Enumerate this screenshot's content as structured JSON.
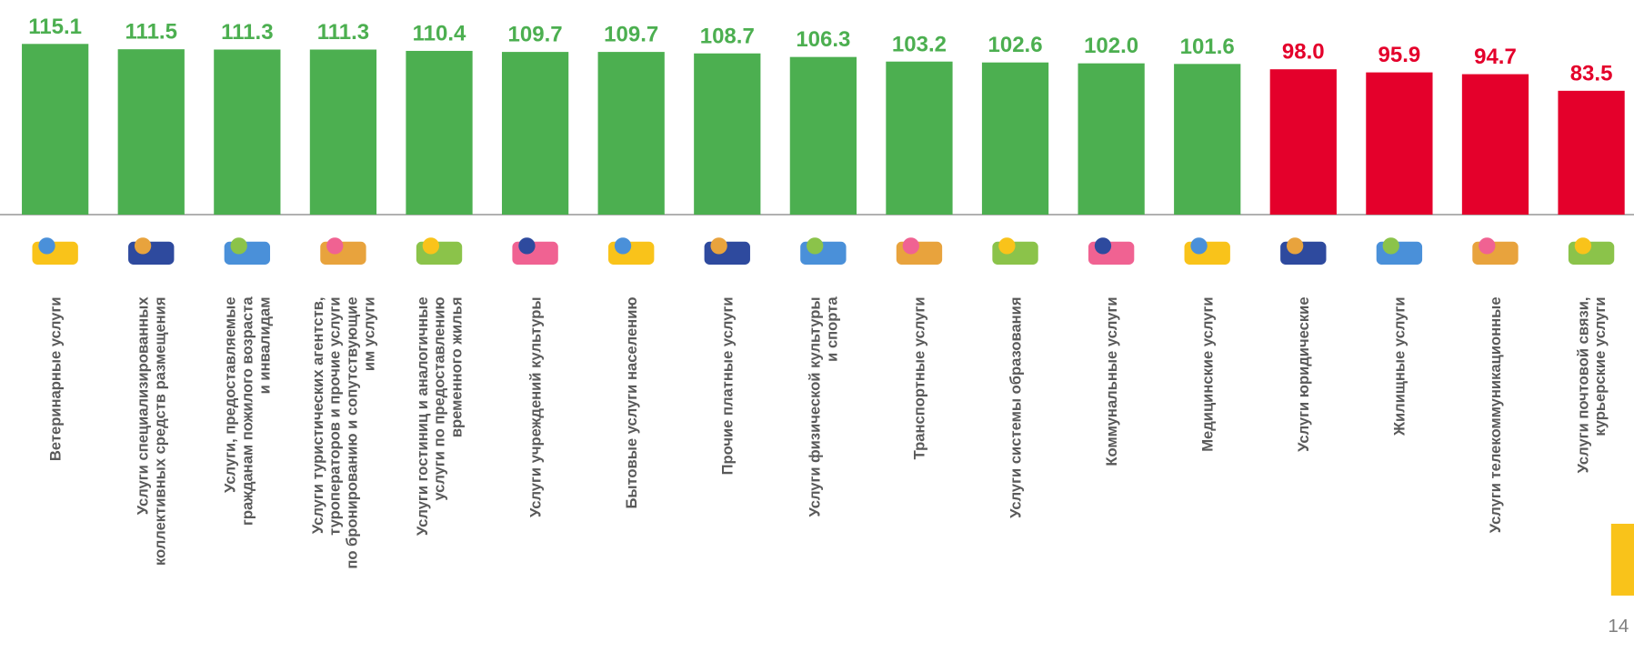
{
  "chart_data": {
    "type": "bar",
    "categories": [
      "Ветеринарные услуги",
      "Услуги специализированных\nколлективных средств размещения",
      "Услуги, предоставляемые\nгражданам пожилого возраста\nи инвалидам",
      "Услуги туристических агентств,\nтуроператоров и прочие услуги\nпо бронированию и  сопутствующие\nим услуги",
      "Услуги гостиниц и аналогичные\nуслуги по предоставлению\nвременного жилья",
      "Услуги учреждений культуры",
      "Бытовые услуги населению",
      "Прочие платные услуги",
      "Услуги физической культуры\nи спорта",
      "Транспортные услуги",
      "Услуги системы образования",
      "Коммунальные услуги",
      "Медицинские услуги",
      "Услуги юридические",
      "Жилищные услуги",
      "Услуги телекоммуникационные",
      "Услуги почтовой связи,\nкурьерские услуги"
    ],
    "values": [
      115.1,
      111.5,
      111.3,
      111.3,
      110.4,
      109.7,
      109.7,
      108.7,
      106.3,
      103.2,
      102.6,
      102.0,
      101.6,
      98.0,
      95.9,
      94.7,
      83.5
    ],
    "value_labels": [
      "115.1",
      "111.5",
      "111.3",
      "111.3",
      "110.4",
      "109.7",
      "109.7",
      "108.7",
      "106.3",
      "103.2",
      "102.6",
      "102.0",
      "101.6",
      "98.0",
      "95.9",
      "94.7",
      "83.5"
    ],
    "colors": [
      "#4caf50",
      "#4caf50",
      "#4caf50",
      "#4caf50",
      "#4caf50",
      "#4caf50",
      "#4caf50",
      "#4caf50",
      "#4caf50",
      "#4caf50",
      "#4caf50",
      "#4caf50",
      "#4caf50",
      "#e4002b",
      "#e4002b",
      "#e4002b",
      "#e4002b"
    ],
    "ylim": [
      0,
      120
    ]
  },
  "page_number": "14"
}
